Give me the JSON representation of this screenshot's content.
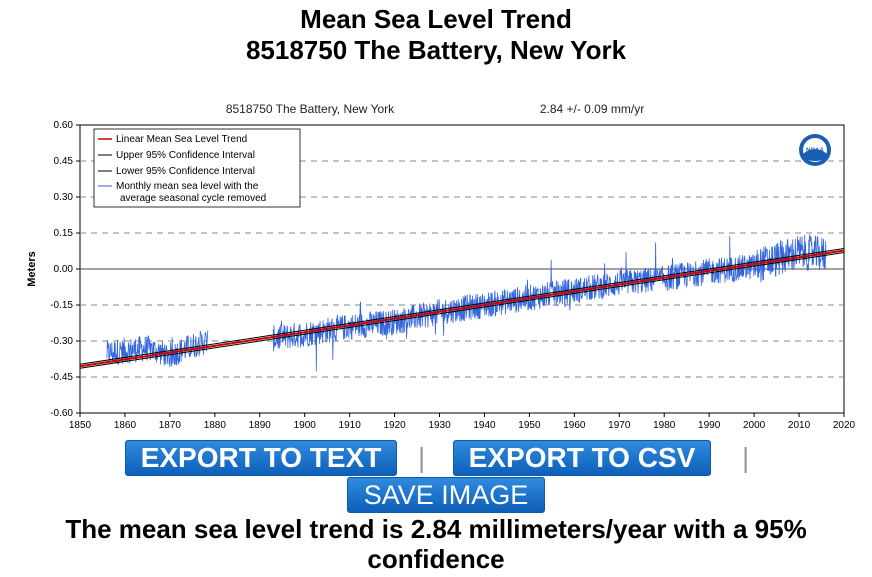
{
  "header": {
    "title_line1": "Mean Sea Level Trend",
    "title_line2": "8518750 The Battery, New York"
  },
  "chart_data": {
    "type": "line",
    "title": "8518750 The Battery, New York",
    "subtitle": "2.84 +/-  0.09 mm/yr",
    "ylabel": "Meters",
    "xlabel": "",
    "xlim": [
      1850,
      2020
    ],
    "ylim": [
      -0.6,
      0.6
    ],
    "x_ticks": [
      "1850",
      "1860",
      "1870",
      "1880",
      "1890",
      "1900",
      "1910",
      "1920",
      "1930",
      "1940",
      "1950",
      "1960",
      "1970",
      "1980",
      "1990",
      "2000",
      "2010",
      "2020"
    ],
    "y_ticks": [
      "0.60",
      "0.45",
      "0.30",
      "0.15",
      "0.00",
      "-0.15",
      "-0.30",
      "-0.45",
      "-0.60"
    ],
    "grid": "horizontal dashed",
    "legend_position": "top-left",
    "legend": [
      {
        "label": "Linear Mean Sea Level Trend",
        "color": "#cc0000"
      },
      {
        "label": "Upper 95% Confidence Interval",
        "color": "#000000"
      },
      {
        "label": "Lower 95% Confidence Interval",
        "color": "#000000"
      },
      {
        "label_line1": "Monthly mean sea level with the",
        "label_line2": "average seasonal cycle removed",
        "color": "#3366dd"
      }
    ],
    "trend": {
      "x": [
        1850,
        2020
      ],
      "y": [
        -0.405,
        0.077
      ]
    },
    "monthly_segments": [
      {
        "x_start": 1856,
        "x_end": 1878.5,
        "anchors": [
          [
            1856,
            -0.35
          ],
          [
            1860,
            -0.34
          ],
          [
            1865,
            -0.33
          ],
          [
            1870,
            -0.36
          ],
          [
            1875,
            -0.32
          ],
          [
            1878.5,
            -0.3
          ]
        ]
      },
      {
        "x_start": 1893,
        "x_end": 2016,
        "anchors": [
          [
            1893,
            -0.29
          ],
          [
            1900,
            -0.27
          ],
          [
            1910,
            -0.24
          ],
          [
            1920,
            -0.22
          ],
          [
            1930,
            -0.18
          ],
          [
            1940,
            -0.15
          ],
          [
            1950,
            -0.12
          ],
          [
            1960,
            -0.09
          ],
          [
            1970,
            -0.06
          ],
          [
            1980,
            -0.04
          ],
          [
            1990,
            -0.01
          ],
          [
            2000,
            0.01
          ],
          [
            2005,
            0.04
          ],
          [
            2010,
            0.07
          ],
          [
            2016,
            0.06
          ]
        ]
      }
    ],
    "colors": {
      "trend": "#cc0000",
      "confidence": "#000000",
      "monthly": "#3366dd",
      "grid": "#888888"
    },
    "logo_text": "NOAA"
  },
  "buttons": {
    "export_text": "EXPORT TO TEXT",
    "export_csv": "EXPORT TO CSV",
    "save_image": "SAVE IMAGE",
    "separator": "|"
  },
  "summary": {
    "line1": "The mean sea level trend is 2.84 millimeters/year with a 95%",
    "line2": "confidence"
  }
}
